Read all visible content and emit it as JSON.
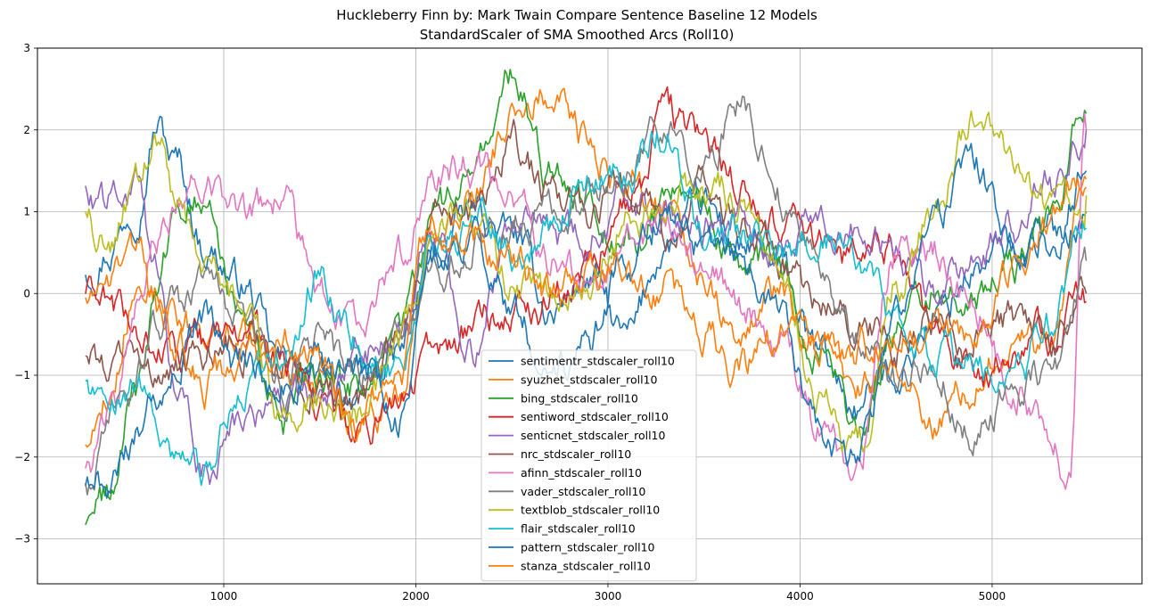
{
  "chart_data": {
    "type": "line",
    "title": "Huckleberry Finn by: Mark Twain Compare Sentence Baseline 12 Models",
    "subtitle": "StandardScaler of SMA Smoothed Arcs (Roll10)",
    "xlabel": "",
    "ylabel": "",
    "xlim": [
      30,
      5780
    ],
    "ylim": [
      -3.55,
      3.0
    ],
    "xticks": [
      1000,
      2000,
      3000,
      4000,
      5000
    ],
    "yticks": [
      -3,
      -2,
      -1,
      0,
      1,
      2,
      3
    ],
    "xtick_labels": [
      "1000",
      "2000",
      "3000",
      "4000",
      "5000"
    ],
    "ytick_labels": [
      "−3",
      "−2",
      "−1",
      "0",
      "1",
      "2",
      "3"
    ],
    "grid": true,
    "legend_position": "lower-center",
    "series": [
      {
        "name": "sentimentr_stdscaler_roll10",
        "color": "#1f77b4",
        "x": [
          280,
          400,
          550,
          650,
          750,
          900,
          1100,
          1300,
          1500,
          1700,
          1900,
          2100,
          2300,
          2500,
          2700,
          2900,
          3100,
          3300,
          3500,
          3700,
          3900,
          4100,
          4300,
          4500,
          4700,
          4900,
          5100,
          5300,
          5490
        ],
        "y": [
          0.3,
          0.6,
          1.2,
          2.1,
          1.6,
          0.6,
          0.1,
          -0.9,
          -1.1,
          -1.2,
          -0.8,
          0.4,
          1.0,
          0.7,
          -0.2,
          0.2,
          -0.6,
          0.6,
          1.0,
          0.6,
          0.2,
          -0.8,
          -1.4,
          -0.9,
          -0.3,
          0.3,
          0.5,
          0.7,
          1.0
        ]
      },
      {
        "name": "syuzhet_stdscaler_roll10",
        "color": "#ff7f0e",
        "x": [
          280,
          400,
          550,
          650,
          750,
          900,
          1100,
          1300,
          1500,
          1700,
          1900,
          2100,
          2300,
          2500,
          2700,
          2900,
          3100,
          3300,
          3500,
          3700,
          3900,
          4100,
          4300,
          4500,
          4700,
          4900,
          5100,
          5300,
          5490
        ],
        "y": [
          -1.8,
          -1.2,
          0.2,
          0.0,
          -0.3,
          -0.5,
          -0.6,
          -0.9,
          -1.1,
          -1.5,
          -1.3,
          0.6,
          1.2,
          2.2,
          2.5,
          1.8,
          1.3,
          1.0,
          0.2,
          -0.4,
          0.0,
          -0.7,
          -1.2,
          -0.8,
          -1.6,
          -1.0,
          -0.5,
          -0.6,
          1.4
        ]
      },
      {
        "name": "bing_stdscaler_roll10",
        "color": "#2ca02c",
        "x": [
          280,
          400,
          550,
          650,
          750,
          900,
          1100,
          1300,
          1500,
          1700,
          1900,
          2100,
          2300,
          2500,
          2700,
          2900,
          3100,
          3300,
          3500,
          3700,
          3900,
          4100,
          4300,
          4500,
          4700,
          4900,
          5100,
          5300,
          5490
        ],
        "y": [
          -2.8,
          -2.5,
          -1.2,
          0.0,
          0.8,
          1.3,
          -0.5,
          -1.6,
          -1.0,
          -1.1,
          -0.6,
          0.9,
          1.5,
          2.6,
          1.5,
          1.2,
          0.6,
          1.2,
          0.9,
          0.4,
          0.3,
          -0.5,
          -1.7,
          -0.4,
          0.2,
          -0.2,
          0.3,
          0.9,
          2.2
        ]
      },
      {
        "name": "sentiword_stdscaler_roll10",
        "color": "#d62728",
        "x": [
          280,
          400,
          550,
          650,
          750,
          900,
          1100,
          1300,
          1500,
          1700,
          1900,
          2100,
          2300,
          2500,
          2700,
          2900,
          3100,
          3300,
          3500,
          3700,
          3900,
          4100,
          4300,
          4500,
          4700,
          4900,
          5100,
          5300,
          5490
        ],
        "y": [
          0.0,
          -0.2,
          -0.4,
          -0.7,
          -0.8,
          -0.7,
          -0.5,
          -0.9,
          -1.3,
          -1.8,
          -1.4,
          -0.7,
          -0.4,
          -0.2,
          -0.1,
          0.4,
          1.1,
          2.1,
          1.8,
          1.3,
          0.8,
          0.6,
          0.4,
          0.5,
          -0.6,
          -0.9,
          -0.7,
          -0.5,
          -0.1
        ]
      },
      {
        "name": "senticnet_stdscaler_roll10",
        "color": "#9467bd",
        "x": [
          280,
          400,
          550,
          650,
          750,
          900,
          1100,
          1300,
          1500,
          1700,
          1900,
          2100,
          2300,
          2500,
          2700,
          2900,
          3100,
          3300,
          3500,
          3700,
          3900,
          4100,
          4300,
          4500,
          4700,
          4900,
          5100,
          5300,
          5490
        ],
        "y": [
          1.3,
          1.1,
          1.2,
          0.2,
          -1.4,
          -2.1,
          -1.6,
          -1.5,
          -1.2,
          -0.8,
          -0.6,
          0.7,
          -0.6,
          0.9,
          0.6,
          0.8,
          1.2,
          0.9,
          0.8,
          1.0,
          0.6,
          1.1,
          0.8,
          0.5,
          0.0,
          0.4,
          0.8,
          1.3,
          2.0
        ]
      },
      {
        "name": "nrc_stdscaler_roll10",
        "color": "#8c564b",
        "x": [
          280,
          400,
          550,
          650,
          750,
          900,
          1100,
          1300,
          1500,
          1700,
          1900,
          2100,
          2300,
          2500,
          2700,
          2900,
          3100,
          3300,
          3500,
          3700,
          3900,
          4100,
          4300,
          4500,
          4700,
          4900,
          5100,
          5300,
          5490
        ],
        "y": [
          -0.8,
          -0.9,
          -0.6,
          -0.8,
          -1.0,
          -0.7,
          -0.6,
          -0.9,
          -1.0,
          -1.3,
          -0.6,
          0.8,
          1.0,
          1.8,
          1.2,
          0.9,
          1.3,
          0.8,
          1.3,
          0.9,
          0.4,
          -0.2,
          -0.4,
          -0.6,
          -0.3,
          -0.5,
          -0.3,
          -0.6,
          0.0
        ]
      },
      {
        "name": "afinn_stdscaler_roll10",
        "color": "#e377c2",
        "x": [
          280,
          400,
          550,
          650,
          750,
          900,
          1100,
          1300,
          1500,
          1700,
          1900,
          2100,
          2300,
          2500,
          2700,
          2900,
          3100,
          3300,
          3500,
          3700,
          3900,
          4100,
          4300,
          4500,
          4700,
          4900,
          5100,
          5300,
          5400,
          5490
        ],
        "y": [
          -2.2,
          -1.6,
          -0.3,
          0.5,
          1.0,
          1.5,
          0.9,
          1.1,
          0.0,
          -0.5,
          0.5,
          1.3,
          1.6,
          1.1,
          0.4,
          0.1,
          0.6,
          0.9,
          0.2,
          -0.2,
          -0.6,
          -1.7,
          -2.2,
          0.5,
          0.6,
          -0.1,
          -1.1,
          -1.6,
          -2.2,
          2.0
        ]
      },
      {
        "name": "vader_stdscaler_roll10",
        "color": "#7f7f7f",
        "x": [
          280,
          400,
          550,
          650,
          750,
          900,
          1100,
          1300,
          1500,
          1700,
          1900,
          2100,
          2300,
          2500,
          2700,
          2900,
          3100,
          3300,
          3500,
          3700,
          3900,
          4100,
          4300,
          4500,
          4700,
          4900,
          5100,
          5300,
          5490
        ],
        "y": [
          -2.4,
          -1.5,
          -1.0,
          -0.3,
          -0.2,
          0.2,
          -0.4,
          -1.2,
          -0.6,
          -1.1,
          -0.7,
          0.3,
          0.7,
          0.8,
          1.0,
          1.2,
          1.6,
          2.0,
          1.5,
          2.3,
          1.2,
          0.5,
          -0.5,
          -1.2,
          -0.9,
          -1.7,
          -1.2,
          -1.0,
          0.4
        ]
      },
      {
        "name": "textblob_stdscaler_roll10",
        "color": "#bcbd22",
        "x": [
          280,
          400,
          550,
          650,
          750,
          900,
          1100,
          1300,
          1500,
          1700,
          1900,
          2100,
          2300,
          2500,
          2700,
          2900,
          3100,
          3300,
          3500,
          3700,
          3900,
          4100,
          4300,
          4500,
          4700,
          4900,
          5100,
          5300,
          5490
        ],
        "y": [
          0.9,
          0.6,
          1.2,
          1.8,
          1.2,
          0.4,
          -0.2,
          -1.4,
          -1.2,
          -1.5,
          -0.8,
          0.8,
          0.9,
          0.1,
          -0.2,
          0.3,
          0.9,
          1.1,
          1.4,
          1.2,
          0.2,
          -1.2,
          -2.0,
          0.1,
          1.1,
          2.1,
          1.8,
          1.0,
          1.2
        ]
      },
      {
        "name": "flair_stdscaler_roll10",
        "color": "#17becf",
        "x": [
          280,
          400,
          550,
          650,
          750,
          900,
          1100,
          1300,
          1500,
          1700,
          1900,
          2100,
          2300,
          2500,
          2700,
          2900,
          3100,
          3300,
          3500,
          3700,
          3900,
          4100,
          4300,
          4500,
          4700,
          4900,
          5100,
          5300,
          5490
        ],
        "y": [
          -1.2,
          -1.2,
          -0.9,
          -1.4,
          -1.8,
          -2.2,
          -1.2,
          -0.9,
          0.2,
          -0.6,
          -0.9,
          0.6,
          0.8,
          0.5,
          0.9,
          1.4,
          1.6,
          1.9,
          0.7,
          0.7,
          0.4,
          0.7,
          0.5,
          -0.5,
          -0.7,
          -0.9,
          -1.2,
          -0.4,
          0.8
        ]
      },
      {
        "name": "pattern_stdscaler_roll10",
        "color": "#1f77b4",
        "x": [
          280,
          400,
          550,
          650,
          750,
          900,
          1100,
          1300,
          1500,
          1700,
          1900,
          2100,
          2300,
          2500,
          2700,
          2900,
          3100,
          3300,
          3500,
          3700,
          3900,
          4100,
          4300,
          4500,
          4700,
          4900,
          5100,
          5300,
          5490
        ],
        "y": [
          -2.5,
          -2.3,
          -1.8,
          -1.1,
          -0.6,
          -0.4,
          -0.9,
          -1.1,
          -0.8,
          -0.9,
          -1.5,
          0.4,
          0.8,
          -0.1,
          -1.0,
          -0.6,
          0.4,
          0.9,
          0.6,
          0.4,
          -0.2,
          -1.6,
          -2.0,
          -0.5,
          0.9,
          1.5,
          0.7,
          0.5,
          1.5
        ]
      },
      {
        "name": "stanza_stdscaler_roll10",
        "color": "#ff7f0e",
        "x": [
          280,
          400,
          550,
          650,
          750,
          900,
          1100,
          1300,
          1500,
          1700,
          1900,
          2100,
          2300,
          2500,
          2700,
          2900,
          3100,
          3300,
          3500,
          3700,
          3900,
          4100,
          4300,
          4500,
          4700,
          4900,
          5100,
          5300,
          5490
        ],
        "y": [
          0.1,
          0.2,
          0.4,
          -0.3,
          -0.7,
          -1.1,
          -0.8,
          -0.6,
          -0.9,
          -1.6,
          -1.1,
          0.9,
          0.7,
          0.3,
          -0.1,
          0.1,
          0.4,
          0.1,
          -0.6,
          -0.9,
          -0.5,
          -0.5,
          -0.6,
          -0.4,
          -0.7,
          -0.5,
          0.2,
          0.8,
          1.3
        ]
      }
    ]
  }
}
